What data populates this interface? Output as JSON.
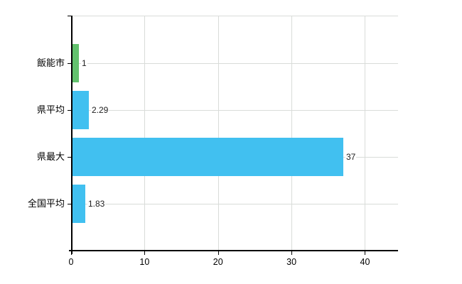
{
  "chart_data": {
    "type": "bar",
    "orientation": "horizontal",
    "title": "",
    "xlabel": "",
    "ylabel": "",
    "categories": [
      "飯能市",
      "県平均",
      "県最大",
      "全国平均"
    ],
    "values": [
      1,
      2.29,
      37,
      1.83
    ],
    "value_labels": [
      "1",
      "2.29",
      "37",
      "1.83"
    ],
    "bar_colors": [
      "#63c26e",
      "#41c0f0",
      "#41c0f0",
      "#41c0f0"
    ],
    "x_ticks": [
      0,
      10,
      20,
      30,
      40
    ],
    "x_tick_labels": [
      "0",
      "10",
      "20",
      "30",
      "40"
    ],
    "xlim": [
      0,
      44.5
    ],
    "grid": "on",
    "legend": "none"
  },
  "colors": {
    "bar_default": "#41c0f0",
    "bar_highlight": "#63c26e",
    "grid": "#d9dcd9",
    "axis": "#000000",
    "text": "#000000",
    "background": "#ffffff"
  }
}
